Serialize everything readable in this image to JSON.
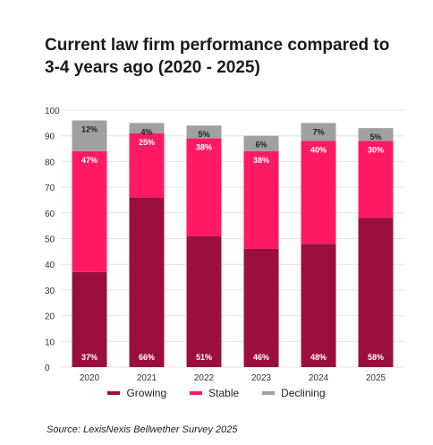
{
  "title": "Current law firm performance compared to 3-4 years ago (2020 - 2025)",
  "source": "Source: LexisNexis Bellwether Survey 2025",
  "chart_data": {
    "type": "bar",
    "stacked": true,
    "title": "Current law firm performance compared to 3-4 years ago (2020 - 2025)",
    "xlabel": "",
    "ylabel": "",
    "ylim": [
      0,
      100
    ],
    "yticks": [
      0,
      10,
      20,
      30,
      40,
      50,
      60,
      70,
      80,
      90,
      100
    ],
    "grid": true,
    "legend_position": "bottom",
    "categories": [
      "2020",
      "2021",
      "2022",
      "2023",
      "2024",
      "2025"
    ],
    "series": [
      {
        "name": "Growing",
        "color": "#9b0f3e",
        "values": [
          37,
          66,
          51,
          46,
          48,
          58
        ]
      },
      {
        "name": "Stable",
        "color": "#ff1a63",
        "values": [
          47,
          25,
          38,
          38,
          40,
          30
        ]
      },
      {
        "name": "Declining",
        "color": "#a0a0a0",
        "values": [
          12,
          4,
          5,
          6,
          7,
          5
        ]
      }
    ],
    "data_labels_suffix": "%"
  }
}
